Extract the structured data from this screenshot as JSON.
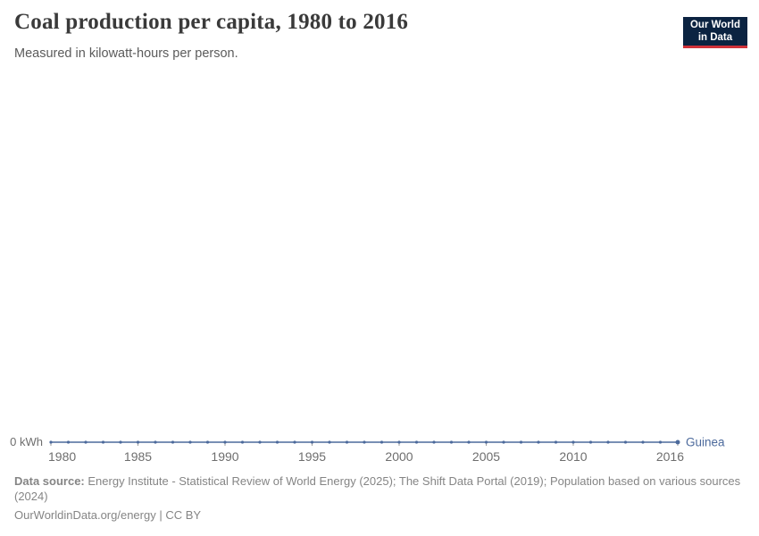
{
  "header": {
    "title": "Coal production per capita, 1980 to 2016",
    "subtitle": "Measured in kilowatt-hours per person.",
    "logo": {
      "line1": "Our World",
      "line2": "in Data"
    }
  },
  "chart_data": {
    "type": "line",
    "title": "Coal production per capita, 1980 to 2016",
    "subtitle": "Measured in kilowatt-hours per person.",
    "unit": "kilowatt-hours per person",
    "grid": false,
    "x_domain": [
      1980,
      2016
    ],
    "x_ticks": [
      1980,
      1985,
      1990,
      1995,
      2000,
      2005,
      2010,
      2016
    ],
    "y_axis_label": "0 kWh",
    "ylim": [
      0,
      0
    ],
    "legend_position": "end-of-line",
    "series": [
      {
        "name": "Guinea",
        "color": "#4C6A9C",
        "x": [
          1980,
          1981,
          1982,
          1983,
          1984,
          1985,
          1986,
          1987,
          1988,
          1989,
          1990,
          1991,
          1992,
          1993,
          1994,
          1995,
          1996,
          1997,
          1998,
          1999,
          2000,
          2001,
          2002,
          2003,
          2004,
          2005,
          2006,
          2007,
          2008,
          2009,
          2010,
          2011,
          2012,
          2013,
          2014,
          2015,
          2016
        ],
        "values": [
          0,
          0,
          0,
          0,
          0,
          0,
          0,
          0,
          0,
          0,
          0,
          0,
          0,
          0,
          0,
          0,
          0,
          0,
          0,
          0,
          0,
          0,
          0,
          0,
          0,
          0,
          0,
          0,
          0,
          0,
          0,
          0,
          0,
          0,
          0,
          0,
          0
        ]
      }
    ]
  },
  "colors": {
    "series_blue": "#4C6A9C",
    "tick_gray": "#9b9b9b",
    "logo_navy": "#0b2341",
    "logo_red": "#cf3139"
  },
  "footer": {
    "source_label": "Data source:",
    "source_text": "Energy Institute - Statistical Review of World Energy (2025); The Shift Data Portal (2019); Population based on various sources (2024)",
    "license_line": "OurWorldinData.org/energy | CC BY"
  }
}
